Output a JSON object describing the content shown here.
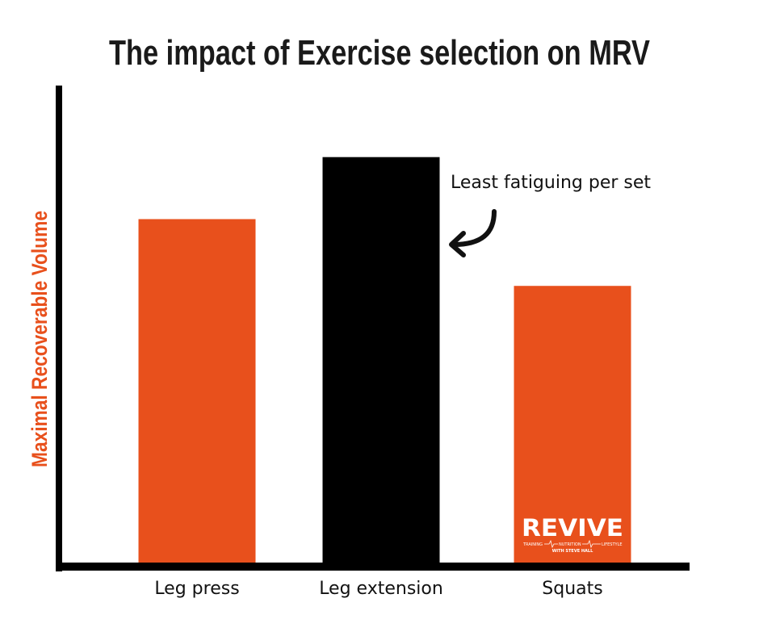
{
  "chart_data": {
    "type": "bar",
    "title": "The impact of Exercise selection on MRV",
    "xlabel": "",
    "ylabel": "Maximal Recoverable Volume",
    "categories": [
      "Leg press",
      "Leg extension",
      "Squats"
    ],
    "values": [
      72,
      85,
      58
    ],
    "ylim": [
      0,
      100
    ],
    "bar_colors": [
      "#e8501c",
      "#000000",
      "#e8501c"
    ],
    "ylabel_color": "#e8501c",
    "grid": false,
    "annotations": [
      {
        "text": "Least fatiguing per set",
        "target": "Leg extension",
        "arrow": true
      }
    ]
  },
  "logo": {
    "name": "REVIVE",
    "tagline_left": "TRAINING",
    "tagline_mid": "NUTRITION",
    "tagline_right": "LIFESTYLE",
    "byline": "WITH STEVE HALL"
  }
}
